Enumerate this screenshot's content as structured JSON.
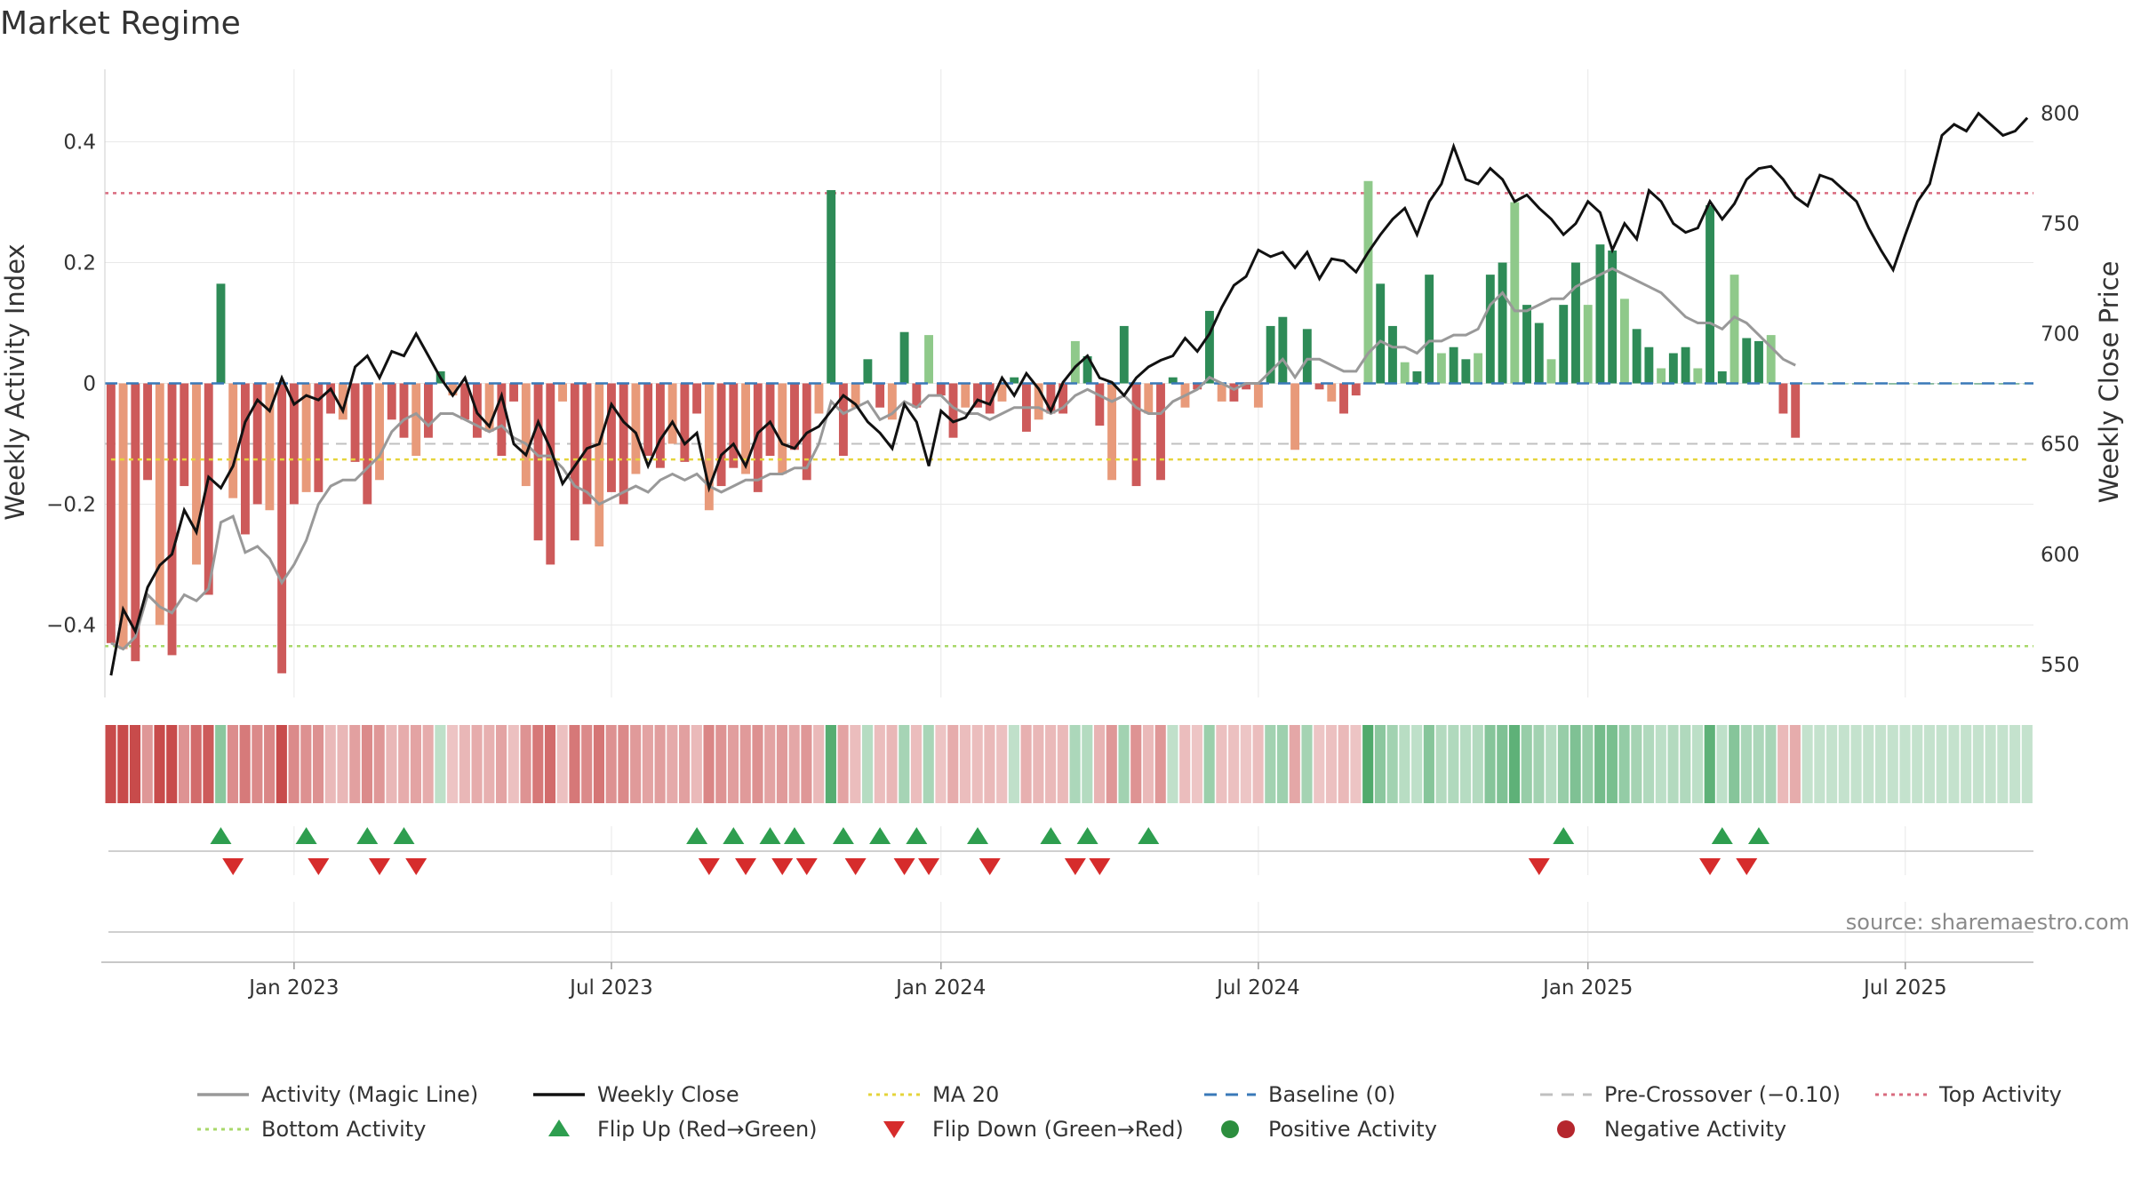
{
  "chart_data": {
    "type": "bar",
    "title": "Market Regime",
    "source_label": "source: sharemaestro.com",
    "ylabel_left": "Weekly Activity Index",
    "ylabel_right": "Weekly Close Price",
    "y_left_range": [
      -0.52,
      0.52
    ],
    "y_right_range": [
      535,
      820
    ],
    "y_left_ticks": [
      {
        "value": 0.4,
        "label": "0.4"
      },
      {
        "value": 0.2,
        "label": "0.2"
      },
      {
        "value": 0,
        "label": "0"
      },
      {
        "value": -0.2,
        "label": "−0.2"
      },
      {
        "value": -0.4,
        "label": "−0.4"
      }
    ],
    "y_right_ticks": [
      {
        "value": 800,
        "label": "800"
      },
      {
        "value": 750,
        "label": "750"
      },
      {
        "value": 700,
        "label": "700"
      },
      {
        "value": 650,
        "label": "650"
      },
      {
        "value": 600,
        "label": "600"
      },
      {
        "value": 550,
        "label": "550"
      }
    ],
    "x_ticks": [
      {
        "week": 15,
        "label": "Jan 2023"
      },
      {
        "week": 41,
        "label": "Jul 2023"
      },
      {
        "week": 68,
        "label": "Jan 2024"
      },
      {
        "week": 94,
        "label": "Jul 2024"
      },
      {
        "week": 121,
        "label": "Jan 2025"
      },
      {
        "week": 147,
        "label": "Jul 2025"
      }
    ],
    "week_count": 158,
    "reference_lines": {
      "baseline": 0,
      "pre_crossover": -0.1,
      "top_activity": 0.315,
      "bottom_activity": -0.435
    },
    "activity_index": [
      -0.43,
      -0.44,
      -0.46,
      -0.16,
      -0.4,
      -0.45,
      -0.17,
      -0.3,
      -0.35,
      0.165,
      -0.19,
      -0.25,
      -0.2,
      -0.21,
      -0.48,
      -0.2,
      -0.18,
      -0.18,
      -0.05,
      -0.06,
      -0.13,
      -0.2,
      -0.16,
      -0.06,
      -0.09,
      -0.12,
      -0.09,
      0.02,
      -0.02,
      -0.06,
      -0.09,
      -0.08,
      -0.12,
      -0.03,
      -0.17,
      -0.26,
      -0.3,
      -0.03,
      -0.26,
      -0.2,
      -0.27,
      -0.18,
      -0.2,
      -0.15,
      -0.12,
      -0.14,
      -0.1,
      -0.13,
      -0.05,
      -0.21,
      -0.17,
      -0.14,
      -0.15,
      -0.18,
      -0.12,
      -0.15,
      -0.11,
      -0.16,
      -0.05,
      0.32,
      -0.12,
      -0.04,
      0.04,
      -0.04,
      -0.06,
      0.085,
      -0.04,
      0.08,
      -0.02,
      -0.09,
      -0.04,
      -0.04,
      -0.05,
      -0.03,
      0.01,
      -0.08,
      -0.06,
      -0.05,
      -0.05,
      0.07,
      0.045,
      -0.07,
      -0.16,
      0.095,
      -0.17,
      -0.05,
      -0.16,
      0.01,
      -0.04,
      -0.01,
      0.12,
      -0.03,
      -0.03,
      -0.01,
      -0.04,
      0.095,
      0.11,
      -0.11,
      0.09,
      -0.01,
      -0.03,
      -0.05,
      -0.02,
      0.335,
      0.165,
      0.095,
      0.035,
      0.02,
      0.18,
      0.05,
      0.06,
      0.04,
      0.05,
      0.18,
      0.2,
      0.3,
      0.13,
      0.1,
      0.04,
      0.13,
      0.2,
      0.13,
      0.23,
      0.22,
      0.14,
      0.09,
      0.06,
      0.025,
      0.05,
      0.06,
      0.025,
      0.295,
      0.02,
      0.18,
      0.075,
      0.07,
      0.08,
      -0.05,
      -0.09
    ],
    "magic_line": [
      -0.43,
      -0.44,
      -0.42,
      -0.35,
      -0.37,
      -0.38,
      -0.35,
      -0.36,
      -0.34,
      -0.23,
      -0.22,
      -0.28,
      -0.27,
      -0.29,
      -0.33,
      -0.3,
      -0.26,
      -0.2,
      -0.17,
      -0.16,
      -0.16,
      -0.14,
      -0.12,
      -0.08,
      -0.06,
      -0.05,
      -0.07,
      -0.05,
      -0.05,
      -0.06,
      -0.07,
      -0.08,
      -0.07,
      -0.09,
      -0.1,
      -0.12,
      -0.12,
      -0.14,
      -0.17,
      -0.18,
      -0.2,
      -0.19,
      -0.18,
      -0.17,
      -0.18,
      -0.16,
      -0.15,
      -0.16,
      -0.15,
      -0.17,
      -0.18,
      -0.17,
      -0.16,
      -0.16,
      -0.15,
      -0.15,
      -0.14,
      -0.14,
      -0.1,
      -0.03,
      -0.05,
      -0.04,
      -0.03,
      -0.06,
      -0.05,
      -0.03,
      -0.04,
      -0.02,
      -0.02,
      -0.04,
      -0.05,
      -0.05,
      -0.06,
      -0.05,
      -0.04,
      -0.04,
      -0.04,
      -0.05,
      -0.04,
      -0.02,
      -0.01,
      -0.02,
      -0.03,
      -0.02,
      -0.04,
      -0.05,
      -0.05,
      -0.03,
      -0.02,
      -0.01,
      0.01,
      0,
      -0.01,
      0,
      0,
      0.02,
      0.04,
      0.01,
      0.04,
      0.04,
      0.03,
      0.02,
      0.02,
      0.05,
      0.07,
      0.06,
      0.06,
      0.05,
      0.07,
      0.07,
      0.08,
      0.08,
      0.09,
      0.13,
      0.15,
      0.12,
      0.12,
      0.13,
      0.14,
      0.14,
      0.16,
      0.17,
      0.18,
      0.19,
      0.18,
      0.17,
      0.16,
      0.15,
      0.13,
      0.11,
      0.1,
      0.1,
      0.09,
      0.11,
      0.1,
      0.08,
      0.06,
      0.04,
      0.03
    ],
    "weekly_close": [
      545,
      575,
      565,
      585,
      595,
      600,
      620,
      610,
      635,
      630,
      640,
      660,
      670,
      665,
      680,
      668,
      672,
      670,
      675,
      665,
      685,
      690,
      680,
      692,
      690,
      700,
      690,
      680,
      672,
      680,
      664,
      658,
      672,
      650,
      645,
      660,
      648,
      632,
      640,
      648,
      650,
      668,
      660,
      655,
      640,
      652,
      660,
      650,
      655,
      630,
      645,
      650,
      640,
      655,
      660,
      650,
      648,
      655,
      658,
      665,
      672,
      668,
      660,
      655,
      648,
      668,
      660,
      640,
      665,
      660,
      662,
      670,
      668,
      680,
      672,
      682,
      675,
      665,
      678,
      685,
      690,
      680,
      678,
      672,
      680,
      685,
      688,
      690,
      698,
      692,
      700,
      712,
      722,
      726,
      738,
      735,
      737,
      730,
      737,
      725,
      734,
      733,
      728,
      737,
      745,
      752,
      757,
      745,
      760,
      768,
      785,
      770,
      768,
      775,
      770,
      760,
      763,
      757,
      752,
      745,
      750,
      760,
      755,
      738,
      750,
      743,
      765,
      760,
      750,
      746,
      748,
      760,
      752,
      759,
      770,
      775,
      776,
      770,
      762,
      758,
      772,
      770,
      765,
      760,
      748,
      738,
      729,
      745,
      760,
      768,
      790,
      795,
      792,
      800,
      795,
      790,
      792,
      798
    ],
    "ma20": [
      643,
      643,
      643,
      643,
      643,
      643,
      643,
      643,
      643,
      643,
      643,
      643,
      643,
      643,
      643,
      643,
      643,
      643,
      643,
      643,
      643,
      643,
      643,
      643,
      643,
      643,
      643,
      643,
      643,
      643,
      643,
      643,
      643,
      643,
      643,
      643,
      643,
      643,
      643,
      643,
      643,
      643,
      643,
      643,
      643,
      643,
      643,
      643,
      643,
      643,
      643,
      643,
      643,
      643,
      643,
      643,
      643,
      643,
      643,
      643,
      643,
      643,
      643,
      643,
      643,
      643,
      643,
      643,
      643,
      643,
      643,
      643,
      643,
      643,
      643,
      643,
      643,
      643,
      643,
      643,
      643,
      643,
      643,
      643,
      643,
      643,
      643,
      643,
      643,
      643,
      643,
      643,
      643,
      643,
      643,
      643,
      643,
      643,
      643,
      643,
      643,
      643,
      643,
      643,
      643,
      643,
      643,
      643,
      643,
      643,
      643,
      643,
      643,
      643,
      643,
      643,
      643,
      643,
      643,
      643,
      643,
      643,
      643,
      643,
      643,
      643,
      643,
      643,
      643,
      643,
      643,
      643,
      643,
      643,
      643,
      643,
      643,
      643,
      643,
      643,
      643,
      643,
      643,
      643,
      643,
      643,
      643,
      643,
      643,
      643,
      643,
      643,
      643,
      643,
      643,
      643,
      643,
      643
    ],
    "flip_up_weeks": [
      9,
      16,
      21,
      24,
      48,
      51,
      54,
      56,
      60,
      63,
      66,
      71,
      77,
      80,
      85,
      119,
      132,
      135
    ],
    "flip_down_weeks": [
      10,
      17,
      22,
      25,
      49,
      52,
      55,
      57,
      61,
      65,
      67,
      72,
      79,
      81,
      117,
      131,
      134
    ],
    "legend": [
      {
        "key": "magic",
        "label": "Activity (Magic Line)",
        "symbol": "line",
        "color": "#999999"
      },
      {
        "key": "close",
        "label": "Weekly Close",
        "symbol": "line",
        "color": "#111111"
      },
      {
        "key": "ma20",
        "label": "MA 20",
        "symbol": "dotted",
        "color": "#e5d43b"
      },
      {
        "key": "baseline",
        "label": "Baseline (0)",
        "symbol": "dashed",
        "color": "#3a79b8"
      },
      {
        "key": "pre",
        "label": "Pre-Crossover (−0.10)",
        "symbol": "dashed",
        "color": "#c0c0c0"
      },
      {
        "key": "top",
        "label": "Top Activity",
        "symbol": "dotted",
        "color": "#d96b7f"
      },
      {
        "key": "bottom",
        "label": "Bottom Activity",
        "symbol": "dotted",
        "color": "#a8d86a"
      },
      {
        "key": "flipup",
        "label": "Flip Up (Red→Green)",
        "symbol": "triangle-up",
        "color": "#2e9e4f"
      },
      {
        "key": "flipdown",
        "label": "Flip Down (Green→Red)",
        "symbol": "triangle-down",
        "color": "#d62c2c"
      },
      {
        "key": "pos",
        "label": "Positive Activity",
        "symbol": "circle",
        "color": "#2c8e3e"
      },
      {
        "key": "neg",
        "label": "Negative Activity",
        "symbol": "circle",
        "color": "#b5262d"
      }
    ],
    "colors": {
      "neg_strong": "#cd5a5a",
      "neg_light": "#e89a7a",
      "pos_strong": "#2e8b57",
      "pos_light": "#8fc98a",
      "grid": "#e8e8e8"
    }
  }
}
